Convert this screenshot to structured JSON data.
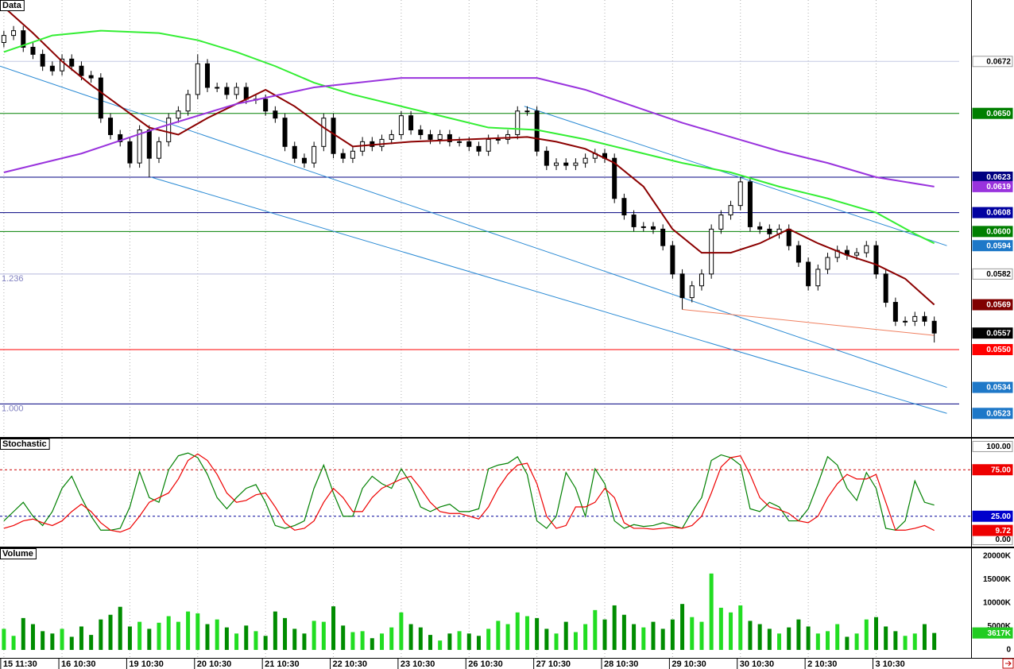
{
  "chart_data": [
    {
      "type": "candlestick",
      "title": "Data",
      "xlim": [
        -0.4,
        99.8
      ],
      "ylim": [
        0.0513,
        0.0698
      ],
      "open": [
        0.068,
        0.0683,
        0.0685,
        0.0678,
        0.0675,
        0.067,
        0.0668,
        0.0673,
        0.067,
        0.0666,
        0.0665,
        0.0648,
        0.0641,
        0.0638,
        0.0629,
        0.0643,
        0.0631,
        0.0638,
        0.0648,
        0.0651,
        0.0658,
        0.0671,
        0.0661,
        0.0661,
        0.0658,
        0.0661,
        0.0656,
        0.0656,
        0.0651,
        0.0648,
        0.0636,
        0.0631,
        0.0629,
        0.0636,
        0.0648,
        0.0633,
        0.0631,
        0.0634,
        0.0638,
        0.0636,
        0.0639,
        0.0641,
        0.0649,
        0.0643,
        0.0641,
        0.0639,
        0.0641,
        0.0638,
        0.0638,
        0.0636,
        0.0634,
        0.0639,
        0.0639,
        0.0641,
        0.0651,
        0.0651,
        0.0634,
        0.0628,
        0.0629,
        0.0628,
        0.0629,
        0.0631,
        0.0633,
        0.0631,
        0.0614,
        0.0607,
        0.0602,
        0.0602,
        0.0601,
        0.0594,
        0.0582,
        0.0572,
        0.0577,
        0.0582,
        0.0601,
        0.0607,
        0.0611,
        0.0621,
        0.0602,
        0.0601,
        0.0599,
        0.0601,
        0.0594,
        0.0587,
        0.0577,
        0.0584,
        0.0589,
        0.0592,
        0.059,
        0.0591,
        0.0594,
        0.0582,
        0.057,
        0.0562,
        0.0562,
        0.0564,
        0.0562
      ],
      "high": [
        0.0685,
        0.0687,
        0.0687,
        0.068,
        0.0677,
        0.0672,
        0.0675,
        0.0675,
        0.0672,
        0.0668,
        0.0667,
        0.065,
        0.0643,
        0.064,
        0.0645,
        0.0645,
        0.064,
        0.065,
        0.0653,
        0.066,
        0.0675,
        0.0673,
        0.0663,
        0.0663,
        0.0663,
        0.0663,
        0.0658,
        0.0658,
        0.0653,
        0.065,
        0.0638,
        0.0633,
        0.0638,
        0.065,
        0.065,
        0.0635,
        0.0636,
        0.064,
        0.064,
        0.0641,
        0.0643,
        0.0651,
        0.0651,
        0.0645,
        0.0643,
        0.0643,
        0.0643,
        0.064,
        0.064,
        0.0638,
        0.0641,
        0.0641,
        0.0643,
        0.0653,
        0.0653,
        0.0653,
        0.0636,
        0.0631,
        0.0631,
        0.0631,
        0.0633,
        0.0635,
        0.0635,
        0.0633,
        0.0616,
        0.0609,
        0.0604,
        0.0604,
        0.0603,
        0.0596,
        0.0584,
        0.0579,
        0.0584,
        0.0603,
        0.0609,
        0.0613,
        0.0623,
        0.0623,
        0.0604,
        0.0603,
        0.0603,
        0.0603,
        0.0596,
        0.0589,
        0.0586,
        0.0591,
        0.0594,
        0.0594,
        0.0593,
        0.0596,
        0.0596,
        0.0584,
        0.0572,
        0.0564,
        0.0566,
        0.0566,
        0.0564
      ],
      "low": [
        0.0678,
        0.0681,
        0.0676,
        0.0673,
        0.0668,
        0.0666,
        0.0666,
        0.0668,
        0.0664,
        0.0663,
        0.0646,
        0.0639,
        0.0636,
        0.0627,
        0.0627,
        0.0623,
        0.0629,
        0.0636,
        0.0646,
        0.0649,
        0.0656,
        0.0659,
        0.0659,
        0.0656,
        0.0656,
        0.0654,
        0.0654,
        0.0649,
        0.0646,
        0.0634,
        0.0629,
        0.0627,
        0.0627,
        0.0634,
        0.0631,
        0.0629,
        0.0629,
        0.0632,
        0.0634,
        0.0634,
        0.0637,
        0.0639,
        0.0641,
        0.0639,
        0.0637,
        0.0637,
        0.0636,
        0.0636,
        0.0634,
        0.0632,
        0.0632,
        0.0637,
        0.0637,
        0.0639,
        0.0649,
        0.0632,
        0.0626,
        0.0626,
        0.0626,
        0.0626,
        0.0627,
        0.0629,
        0.0629,
        0.0612,
        0.0605,
        0.06,
        0.06,
        0.0599,
        0.0592,
        0.058,
        0.0567,
        0.057,
        0.0575,
        0.058,
        0.0599,
        0.0605,
        0.0609,
        0.06,
        0.0599,
        0.0597,
        0.0597,
        0.0592,
        0.0585,
        0.0575,
        0.0575,
        0.0582,
        0.0587,
        0.0588,
        0.0588,
        0.0589,
        0.058,
        0.0568,
        0.056,
        0.056,
        0.056,
        0.056,
        0.0553
      ],
      "close": [
        0.0683,
        0.0685,
        0.0678,
        0.0675,
        0.067,
        0.0668,
        0.0673,
        0.067,
        0.0666,
        0.0665,
        0.0648,
        0.0641,
        0.0638,
        0.0629,
        0.0643,
        0.0631,
        0.0638,
        0.0648,
        0.0651,
        0.0658,
        0.0671,
        0.0661,
        0.0661,
        0.0658,
        0.0661,
        0.0656,
        0.0656,
        0.0651,
        0.0648,
        0.0636,
        0.0631,
        0.0629,
        0.0636,
        0.0648,
        0.0633,
        0.0631,
        0.0634,
        0.0638,
        0.0636,
        0.0639,
        0.0641,
        0.0649,
        0.0643,
        0.0641,
        0.0639,
        0.0641,
        0.0638,
        0.0638,
        0.0636,
        0.0634,
        0.0639,
        0.0639,
        0.0641,
        0.0651,
        0.0651,
        0.0634,
        0.0628,
        0.0629,
        0.0628,
        0.0629,
        0.0631,
        0.0633,
        0.0631,
        0.0614,
        0.0607,
        0.0602,
        0.0602,
        0.0601,
        0.0594,
        0.0582,
        0.0572,
        0.0577,
        0.0582,
        0.0601,
        0.0607,
        0.0611,
        0.0621,
        0.0602,
        0.0601,
        0.0599,
        0.0601,
        0.0594,
        0.0587,
        0.0577,
        0.0584,
        0.0589,
        0.0592,
        0.059,
        0.0591,
        0.0594,
        0.0582,
        0.057,
        0.0562,
        0.0562,
        0.0564,
        0.0562,
        0.0557
      ],
      "overlays": [
        {
          "color": "#8b0000",
          "x": [
            0,
            3,
            6,
            9,
            12,
            15,
            18,
            21,
            24,
            27,
            30,
            33,
            36,
            42,
            48,
            54,
            57,
            60,
            63,
            66,
            69,
            72,
            75,
            78,
            81,
            84,
            87,
            90,
            93,
            96
          ],
          "values": [
            0.0695,
            0.0684,
            0.0672,
            0.0662,
            0.0653,
            0.0644,
            0.0641,
            0.0648,
            0.0654,
            0.066,
            0.0653,
            0.0644,
            0.0636,
            0.0638,
            0.0639,
            0.064,
            0.0638,
            0.0635,
            0.0629,
            0.0619,
            0.0601,
            0.0591,
            0.0591,
            0.0595,
            0.0601,
            0.0595,
            0.059,
            0.0586,
            0.058,
            0.0569
          ]
        },
        {
          "color": "#33ee33",
          "x": [
            0,
            5,
            10,
            16,
            20,
            24,
            28,
            32,
            36,
            41,
            46,
            50,
            55,
            60,
            65,
            70,
            75,
            80,
            85,
            90,
            94,
            96
          ],
          "values": [
            0.0676,
            0.0683,
            0.0685,
            0.0684,
            0.0681,
            0.0676,
            0.067,
            0.0663,
            0.0658,
            0.0653,
            0.0648,
            0.0644,
            0.0643,
            0.0639,
            0.0634,
            0.0629,
            0.0625,
            0.0619,
            0.0614,
            0.0608,
            0.0599,
            0.0595
          ]
        },
        {
          "color": "#9933dd",
          "x": [
            0,
            8,
            16,
            24,
            32,
            41,
            49,
            55,
            60,
            65,
            70,
            75,
            80,
            85,
            90,
            96
          ],
          "values": [
            0.0625,
            0.0633,
            0.0644,
            0.0654,
            0.0661,
            0.0665,
            0.0665,
            0.0665,
            0.066,
            0.0653,
            0.0646,
            0.064,
            0.0634,
            0.0629,
            0.0623,
            0.0619
          ]
        }
      ],
      "trendlines": [
        {
          "color": "#2a8ad4",
          "x": [
            -0.4,
            97.3
          ],
          "values": [
            0.067,
            0.0534
          ]
        },
        {
          "color": "#2a8ad4",
          "x": [
            15.2,
            97.3
          ],
          "values": [
            0.0623,
            0.0523
          ]
        },
        {
          "color": "#2a8ad4",
          "x": [
            53.7,
            97.3
          ],
          "values": [
            0.0653,
            0.0594
          ]
        },
        {
          "color": "#f08060",
          "x": [
            70,
            96
          ],
          "values": [
            0.0567,
            0.0556
          ]
        }
      ],
      "levels": [
        0.0672,
        0.065,
        0.0623,
        0.0608,
        0.06,
        0.0582,
        0.055,
        0.0527
      ],
      "level_colors": [
        "#c4c8e4",
        "#008000",
        "#000080",
        "#000080",
        "#008000",
        "#b4b8dc",
        "#ff0000",
        "#000080"
      ],
      "level_labels": [
        {
          "value": 0.0582,
          "label": "1.236"
        },
        {
          "value": 0.0527,
          "label": "1.000"
        }
      ],
      "yticks": [
        0.0672,
        {
          "value": 0.065,
          "label": "0.0650"
        },
        0.0623,
        0.0619,
        0.0608,
        {
          "value": 0.06,
          "label": "0.0600"
        },
        0.0594,
        0.0582,
        0.0569,
        0.0557,
        {
          "value": 0.055,
          "label": "0.0550"
        },
        0.0534,
        0.0523
      ],
      "ytick_colors": [
        "#ffffff",
        "#007f00",
        "#000080",
        "#9933dd",
        "#0000a0",
        "#007f00",
        "#1e78c8",
        "#ffffff",
        "#800000",
        "#000000",
        "#ff0000",
        "#1e78c8",
        "#1e78c8"
      ],
      "grid": true
    },
    {
      "type": "line",
      "title": "Stochastic",
      "xlim": [
        -0.4,
        99.8
      ],
      "ylim": [
        -7.7,
        108.5
      ],
      "series": [
        {
          "color": "#008000",
          "values": [
            20,
            30,
            40,
            25,
            15,
            30,
            55,
            68,
            45,
            25,
            10,
            10,
            12,
            35,
            73,
            45,
            40,
            75,
            90,
            93,
            88,
            70,
            45,
            33,
            45,
            55,
            59,
            40,
            15,
            12,
            15,
            20,
            55,
            80,
            50,
            25,
            25,
            55,
            68,
            60,
            55,
            76,
            60,
            35,
            30,
            35,
            38,
            30,
            30,
            33,
            76,
            80,
            82,
            89,
            70,
            20,
            12,
            25,
            72,
            55,
            25,
            76,
            60,
            20,
            12,
            16,
            14,
            15,
            18,
            15,
            12,
            30,
            45,
            85,
            91,
            88,
            80,
            33,
            30,
            40,
            35,
            20,
            20,
            33,
            60,
            89,
            80,
            55,
            42,
            72,
            55,
            12,
            10,
            20,
            63,
            40,
            37
          ]
        },
        {
          "color": "#ee0000",
          "last_marker": true,
          "values": [
            12,
            15,
            20,
            22,
            18,
            15,
            20,
            30,
            38,
            30,
            18,
            10,
            8,
            12,
            25,
            40,
            45,
            50,
            65,
            85,
            92,
            85,
            70,
            50,
            40,
            42,
            48,
            50,
            35,
            18,
            10,
            12,
            20,
            40,
            55,
            45,
            30,
            30,
            45,
            55,
            60,
            65,
            68,
            55,
            40,
            30,
            28,
            28,
            25,
            22,
            35,
            55,
            70,
            80,
            82,
            60,
            25,
            12,
            15,
            35,
            35,
            40,
            55,
            45,
            18,
            12,
            12,
            11,
            12,
            13,
            12,
            15,
            25,
            50,
            78,
            88,
            90,
            70,
            45,
            35,
            32,
            28,
            20,
            18,
            25,
            45,
            60,
            70,
            65,
            65,
            70,
            40,
            10,
            10,
            12,
            15,
            9.72
          ]
        }
      ],
      "levels": [
        75,
        25
      ],
      "level_colors": [
        "#cc0000",
        "#000099"
      ],
      "level_dash": true,
      "yticks": [
        {
          "value": 100,
          "label": "100.00"
        },
        {
          "value": 75,
          "label": "75.00"
        },
        {
          "value": 25,
          "label": "25.00"
        },
        {
          "value": 0,
          "label": "0.00"
        }
      ],
      "ytick_colors": [
        "#ffffff",
        "#ee0000",
        "#0000cc",
        "#ffffff"
      ],
      "grid": true
    },
    {
      "type": "bar",
      "title": "Volume",
      "xlim": [
        -0.4,
        99.8
      ],
      "ylim": [
        -1700000,
        21700000
      ],
      "values": [
        4500000,
        3000000,
        6800000,
        5500000,
        4000000,
        3500000,
        4500000,
        2800000,
        5000000,
        3200000,
        6500000,
        7500000,
        9200000,
        5000000,
        6000000,
        4500000,
        5800000,
        7200000,
        6000000,
        8200000,
        7800000,
        5500000,
        6500000,
        4800000,
        3500000,
        5200000,
        4000000,
        3000000,
        8200000,
        6800000,
        4500000,
        3500000,
        6200000,
        6000000,
        9300000,
        5200000,
        3800000,
        4000000,
        2500000,
        3500000,
        4800000,
        8000000,
        5500000,
        4800000,
        3200000,
        2000000,
        3500000,
        4000000,
        3500000,
        3000000,
        4500000,
        6200000,
        5500000,
        8000000,
        7200000,
        6800000,
        4500000,
        3500000,
        6000000,
        3800000,
        5500000,
        8500000,
        6500000,
        9500000,
        7500000,
        5500000,
        4800000,
        6000000,
        4500000,
        6500000,
        9800000,
        7000000,
        6000000,
        16300000,
        9000000,
        8000000,
        9500000,
        6200000,
        5500000,
        4500000,
        3500000,
        4800000,
        6500000,
        5000000,
        3500000,
        4000000,
        5500000,
        2800000,
        3500000,
        6500000,
        7000000,
        5000000,
        4000000,
        3000000,
        3500000,
        5500000,
        3617000
      ],
      "up_color": "#22dd22",
      "down_color": "#008c00",
      "last_value_label": "3617K",
      "last_marker_color": "#22cc22",
      "yticks": [
        {
          "value": 20000000,
          "label": "20000K"
        },
        {
          "value": 15000000,
          "label": "15000K"
        },
        {
          "value": 10000000,
          "label": "10000K"
        },
        {
          "value": 5000000,
          "label": "5000K"
        },
        0
      ],
      "xticks": [
        {
          "value": 0,
          "label": "15 11:30"
        },
        {
          "value": 6,
          "label": "16 10:30"
        },
        {
          "value": 13,
          "label": "19 10:30"
        },
        {
          "value": 20,
          "label": "20 10:30"
        },
        {
          "value": 27,
          "label": "21 10:30"
        },
        {
          "value": 34,
          "label": "22 10:30"
        },
        {
          "value": 41,
          "label": "23 10:30"
        },
        {
          "value": 48,
          "label": "26 10:30"
        },
        {
          "value": 55,
          "label": "27 10:30"
        },
        {
          "value": 62,
          "label": "28 10:30"
        },
        {
          "value": 69,
          "label": "29 10:30"
        },
        {
          "value": 76,
          "label": "30 10:30"
        },
        {
          "value": 83,
          "label": "2 10:30"
        },
        {
          "value": 90,
          "label": "3 10:30"
        }
      ],
      "grid": true
    }
  ]
}
